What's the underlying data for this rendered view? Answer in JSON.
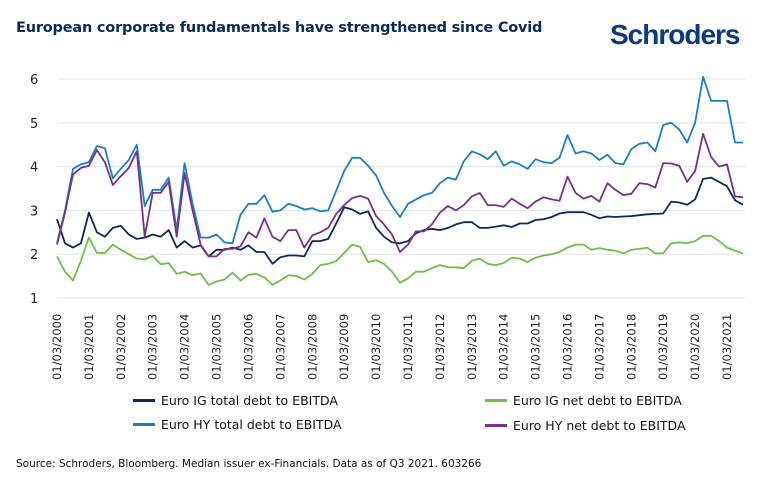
{
  "header": {
    "title": "European corporate fundamentals have strengthened since Covid",
    "logo": "Schroders"
  },
  "footer": {
    "source": "Source: Schroders, Bloomberg. Median issuer ex-Financials. Data as of Q3 2021. 603266"
  },
  "chart_data": {
    "type": "line",
    "title": "European corporate fundamentals have strengthened since Covid",
    "xlabel": "",
    "ylabel": "",
    "ylim": [
      1,
      6
    ],
    "yticks": [
      "1",
      "2",
      "3",
      "4",
      "5",
      "6"
    ],
    "grid": true,
    "legend_position": "bottom",
    "x_start": "2000 Q1",
    "x_end": "2021 Q3",
    "frequency": "quarterly",
    "xtick_labels": [
      "01/03/2000",
      "01/03/2001",
      "01/03/2002",
      "01/03/2003",
      "01/03/2004",
      "01/03/2005",
      "01/03/2006",
      "01/03/2007",
      "01/03/2008",
      "01/03/2009",
      "01/03/2010",
      "01/03/2011",
      "01/03/2012",
      "01/03/2013",
      "01/03/2014",
      "01/03/2015",
      "01/03/2016",
      "01/03/2017",
      "01/03/2018",
      "01/03/2019",
      "01/03/2020",
      "01/03/2021"
    ],
    "series": [
      {
        "name": "Euro IG total debt to EBITDA",
        "color": "#0c2a5c",
        "values": [
          2.8,
          2.25,
          2.15,
          2.25,
          2.95,
          2.5,
          2.4,
          2.6,
          2.65,
          2.45,
          2.35,
          2.38,
          2.45,
          2.4,
          2.55,
          2.15,
          2.3,
          2.15,
          2.2,
          1.95,
          2.1,
          2.1,
          2.15,
          2.1,
          2.2,
          2.05,
          2.05,
          1.78,
          1.93,
          1.97,
          1.97,
          1.95,
          2.3,
          2.3,
          2.35,
          2.7,
          3.07,
          3.02,
          2.92,
          2.98,
          2.6,
          2.4,
          2.27,
          2.25,
          2.3,
          2.48,
          2.55,
          2.58,
          2.55,
          2.6,
          2.68,
          2.73,
          2.73,
          2.6,
          2.6,
          2.63,
          2.66,
          2.62,
          2.7,
          2.7,
          2.78,
          2.8,
          2.85,
          2.93,
          2.96,
          2.96,
          2.96,
          2.9,
          2.82,
          2.86,
          2.85,
          2.86,
          2.87,
          2.89,
          2.91,
          2.92,
          2.93,
          3.2,
          3.18,
          3.13,
          3.25,
          3.72,
          3.75,
          3.65,
          3.55,
          3.23,
          3.13
        ]
      },
      {
        "name": "Euro IG net debt to EBITDA",
        "color": "#6cc04a",
        "values": [
          1.95,
          1.6,
          1.4,
          1.85,
          2.38,
          2.03,
          2.03,
          2.22,
          2.1,
          2.0,
          1.9,
          1.88,
          1.96,
          1.77,
          1.8,
          1.55,
          1.6,
          1.52,
          1.56,
          1.3,
          1.38,
          1.42,
          1.58,
          1.4,
          1.53,
          1.55,
          1.47,
          1.3,
          1.4,
          1.52,
          1.5,
          1.42,
          1.55,
          1.75,
          1.78,
          1.84,
          2.03,
          2.22,
          2.17,
          1.82,
          1.86,
          1.78,
          1.6,
          1.35,
          1.45,
          1.6,
          1.6,
          1.68,
          1.75,
          1.7,
          1.7,
          1.68,
          1.85,
          1.9,
          1.78,
          1.75,
          1.8,
          1.92,
          1.9,
          1.82,
          1.92,
          1.97,
          2.0,
          2.05,
          2.15,
          2.22,
          2.22,
          2.1,
          2.14,
          2.1,
          2.08,
          2.02,
          2.1,
          2.12,
          2.15,
          2.02,
          2.02,
          2.25,
          2.27,
          2.25,
          2.3,
          2.42,
          2.42,
          2.3,
          2.15,
          2.08,
          2.02
        ]
      },
      {
        "name": "Euro HY total debt to EBITDA",
        "color": "#1b7fc4",
        "values": [
          2.25,
          3.0,
          3.95,
          4.05,
          4.1,
          4.47,
          4.42,
          3.73,
          3.95,
          4.15,
          4.5,
          3.1,
          3.47,
          3.47,
          3.75,
          2.55,
          4.08,
          3.15,
          2.38,
          2.38,
          2.45,
          2.27,
          2.25,
          2.9,
          3.15,
          3.15,
          3.35,
          2.97,
          3.0,
          3.15,
          3.1,
          3.02,
          3.05,
          2.98,
          3.0,
          3.45,
          3.9,
          4.2,
          4.2,
          4.02,
          3.8,
          3.4,
          3.1,
          2.85,
          3.15,
          3.25,
          3.35,
          3.4,
          3.62,
          3.75,
          3.7,
          4.12,
          4.35,
          4.28,
          4.17,
          4.35,
          4.02,
          4.12,
          4.05,
          3.95,
          4.17,
          4.1,
          4.08,
          4.2,
          4.72,
          4.3,
          4.35,
          4.3,
          4.15,
          4.27,
          4.08,
          4.05,
          4.4,
          4.52,
          4.55,
          4.35,
          4.95,
          5.0,
          4.85,
          4.55,
          5.0,
          6.05,
          5.5,
          5.5,
          5.5,
          4.55,
          4.55
        ]
      },
      {
        "name": "Euro HY net debt to EBITDA",
        "color": "#7b2f8c",
        "values": [
          2.22,
          2.95,
          3.82,
          3.97,
          4.02,
          4.38,
          4.1,
          3.58,
          3.78,
          3.97,
          4.35,
          2.4,
          3.4,
          3.4,
          3.65,
          2.4,
          3.85,
          3.0,
          2.22,
          1.95,
          1.95,
          2.12,
          2.12,
          2.18,
          2.5,
          2.38,
          2.82,
          2.4,
          2.3,
          2.55,
          2.55,
          2.15,
          2.43,
          2.5,
          2.6,
          2.92,
          3.12,
          3.28,
          3.33,
          3.27,
          2.87,
          2.68,
          2.45,
          2.05,
          2.22,
          2.52,
          2.52,
          2.68,
          2.95,
          3.1,
          3.0,
          3.12,
          3.32,
          3.4,
          3.12,
          3.12,
          3.08,
          3.27,
          3.15,
          3.05,
          3.2,
          3.3,
          3.25,
          3.22,
          3.77,
          3.4,
          3.27,
          3.33,
          3.2,
          3.62,
          3.47,
          3.35,
          3.38,
          3.62,
          3.6,
          3.52,
          4.08,
          4.07,
          4.02,
          3.65,
          3.9,
          4.75,
          4.22,
          4.0,
          4.05,
          3.32,
          3.3
        ]
      }
    ]
  }
}
